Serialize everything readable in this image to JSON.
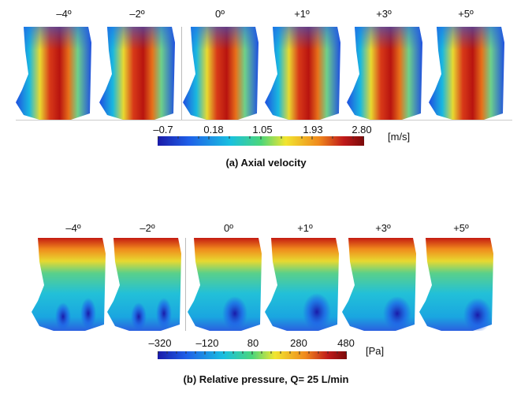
{
  "panel_a": {
    "angles": [
      "–4º",
      "–2º",
      "0º",
      "+1º",
      "+3º",
      "+5º"
    ],
    "colorbar": {
      "ticks": [
        "–0.7",
        "0.18",
        "1.05",
        "1.93",
        "2.80"
      ],
      "unit": "[m/s]",
      "colors": [
        "#1a1aa8",
        "#1f5fe8",
        "#19c0e0",
        "#4bd67a",
        "#f1e530",
        "#f08a1c",
        "#c01a1a",
        "#7a0a0a"
      ]
    },
    "caption": "(a) Axial velocity"
  },
  "panel_b": {
    "angles": [
      "–4º",
      "–2º",
      "0º",
      "+1º",
      "+3º",
      "+5º"
    ],
    "colorbar": {
      "ticks": [
        "–320",
        "–120",
        "80",
        "280",
        "480"
      ],
      "unit": "[Pa]",
      "colors": [
        "#1a1aa8",
        "#1f5fe8",
        "#19c0e0",
        "#4bd67a",
        "#f1e530",
        "#f08a1c",
        "#c01a1a",
        "#7a0a0a"
      ]
    },
    "caption": "(b) Relative pressure, Q= 25 L/min"
  }
}
